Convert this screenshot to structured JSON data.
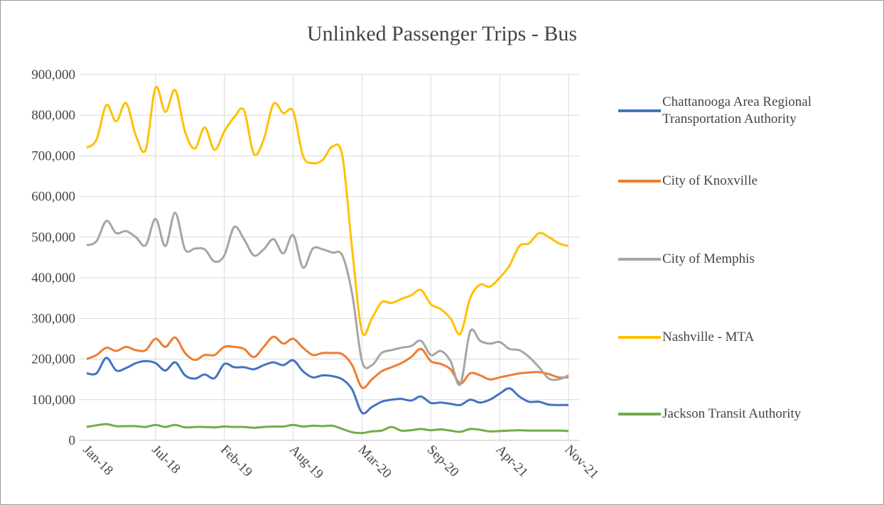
{
  "chart_data": {
    "type": "line",
    "title": "Unlinked Passenger Trips - Bus",
    "categories": [
      "Jan-18",
      null,
      null,
      null,
      null,
      null,
      null,
      "Jul-18",
      null,
      null,
      null,
      null,
      null,
      null,
      "Feb-19",
      null,
      null,
      null,
      null,
      null,
      null,
      "Aug-19",
      null,
      null,
      null,
      null,
      null,
      null,
      "Mar-20",
      null,
      null,
      null,
      null,
      null,
      null,
      "Sep-20",
      null,
      null,
      null,
      null,
      null,
      null,
      "Apr-21",
      null,
      null,
      null,
      null,
      null,
      null,
      "Nov-21"
    ],
    "ylim": [
      0,
      900000
    ],
    "yticks": [
      0,
      {
        "value": 100000,
        "label": "100,000"
      },
      {
        "value": 200000,
        "label": "200,000"
      },
      {
        "value": 300000,
        "label": "300,000"
      },
      {
        "value": 400000,
        "label": "400,000"
      },
      {
        "value": 500000,
        "label": "500,000"
      },
      {
        "value": 600000,
        "label": "600,000"
      },
      {
        "value": 700000,
        "label": "700,000"
      },
      {
        "value": 800000,
        "label": "800,000"
      },
      {
        "value": 900000,
        "label": "900,000"
      }
    ],
    "grid": true,
    "smooth": true,
    "legend": "right",
    "series": [
      {
        "name": "Chattanooga Area Regional Transportation Authority",
        "color": "#4472c4",
        "values": [
          165000,
          165000,
          203000,
          172000,
          178000,
          190000,
          195000,
          190000,
          172000,
          192000,
          160000,
          152000,
          162000,
          153000,
          188000,
          180000,
          180000,
          175000,
          185000,
          192000,
          185000,
          197000,
          170000,
          155000,
          160000,
          158000,
          150000,
          125000,
          68000,
          82000,
          95000,
          100000,
          102000,
          98000,
          108000,
          92000,
          93000,
          90000,
          87000,
          100000,
          93000,
          100000,
          115000,
          128000,
          108000,
          95000,
          95000,
          88000,
          87000,
          87000
        ]
      },
      {
        "name": "City of Knoxville",
        "color": "#ed7d31",
        "values": [
          200000,
          210000,
          228000,
          220000,
          230000,
          222000,
          222000,
          250000,
          230000,
          253000,
          215000,
          198000,
          210000,
          210000,
          230000,
          230000,
          225000,
          205000,
          230000,
          255000,
          238000,
          250000,
          228000,
          210000,
          215000,
          215000,
          212000,
          185000,
          130000,
          150000,
          170000,
          180000,
          190000,
          205000,
          225000,
          195000,
          188000,
          175000,
          140000,
          165000,
          160000,
          150000,
          155000,
          160000,
          165000,
          167000,
          168000,
          163000,
          155000,
          155000
        ]
      },
      {
        "name": "City of Memphis",
        "color": "#a5a5a5",
        "values": [
          480000,
          490000,
          540000,
          510000,
          515000,
          500000,
          480000,
          545000,
          478000,
          560000,
          470000,
          472000,
          470000,
          440000,
          455000,
          525000,
          495000,
          455000,
          470000,
          495000,
          460000,
          505000,
          425000,
          472000,
          470000,
          462000,
          455000,
          360000,
          195000,
          185000,
          215000,
          222000,
          228000,
          232000,
          245000,
          210000,
          220000,
          195000,
          138000,
          268000,
          245000,
          238000,
          242000,
          225000,
          222000,
          205000,
          180000,
          152000,
          150000,
          160000
        ]
      },
      {
        "name": "Nashville - MTA",
        "color": "#ffc000",
        "values": [
          720000,
          740000,
          825000,
          785000,
          830000,
          750000,
          715000,
          868000,
          808000,
          862000,
          760000,
          718000,
          770000,
          715000,
          760000,
          795000,
          812000,
          705000,
          740000,
          828000,
          805000,
          810000,
          700000,
          682000,
          690000,
          723000,
          700000,
          470000,
          268000,
          300000,
          340000,
          338000,
          348000,
          357000,
          370000,
          335000,
          323000,
          300000,
          262000,
          350000,
          383000,
          378000,
          400000,
          430000,
          478000,
          485000,
          510000,
          500000,
          485000,
          478000
        ]
      },
      {
        "name": "Jackson Transit Authority",
        "color": "#70ad47",
        "values": [
          33000,
          37000,
          40000,
          35000,
          35000,
          35000,
          33000,
          38000,
          33000,
          38000,
          32000,
          33000,
          33000,
          32000,
          34000,
          33000,
          33000,
          31000,
          33000,
          34000,
          34000,
          38000,
          34000,
          36000,
          35000,
          36000,
          28000,
          20000,
          18000,
          22000,
          24000,
          33000,
          24000,
          25000,
          28000,
          25000,
          27000,
          24000,
          21000,
          28000,
          26000,
          22000,
          23000,
          24000,
          25000,
          24000,
          24000,
          24000,
          24000,
          23000
        ]
      }
    ]
  }
}
